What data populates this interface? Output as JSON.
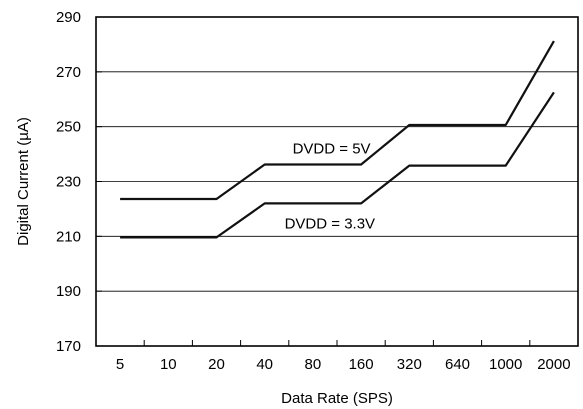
{
  "chart_data": {
    "type": "line",
    "title": "",
    "xlabel": "Data Rate (SPS)",
    "ylabel": "Digital Current (µA)",
    "categories": [
      "5",
      "10",
      "20",
      "40",
      "80",
      "160",
      "320",
      "640",
      "1000",
      "2000"
    ],
    "ylim": [
      170,
      290
    ],
    "yticks": [
      170,
      190,
      210,
      230,
      250,
      270,
      290
    ],
    "grid": true,
    "series": [
      {
        "name": "DVDD = 5V",
        "points": [
          {
            "x": "5",
            "y": 223.6
          },
          {
            "x": "20",
            "y": 223.6
          },
          {
            "x": "40",
            "y": 236.2
          },
          {
            "x": "160",
            "y": 236.2
          },
          {
            "x": "320",
            "y": 250.6
          },
          {
            "x": "1000",
            "y": 250.6
          },
          {
            "x": "2000",
            "y": 281.2
          }
        ]
      },
      {
        "name": "DVDD = 3.3V",
        "points": [
          {
            "x": "5",
            "y": 209.6
          },
          {
            "x": "20",
            "y": 209.6
          },
          {
            "x": "40",
            "y": 222.0
          },
          {
            "x": "160",
            "y": 222.0
          },
          {
            "x": "320",
            "y": 235.8
          },
          {
            "x": "1000",
            "y": 235.8
          },
          {
            "x": "2000",
            "y": 262.5
          }
        ]
      }
    ],
    "annotations": [
      {
        "text": "DVDD = 5V",
        "series": 0
      },
      {
        "text": "DVDD = 3.3V",
        "series": 1
      }
    ],
    "colors": {
      "line": "#111111",
      "grid": "#000000",
      "axis": "#000000"
    }
  }
}
